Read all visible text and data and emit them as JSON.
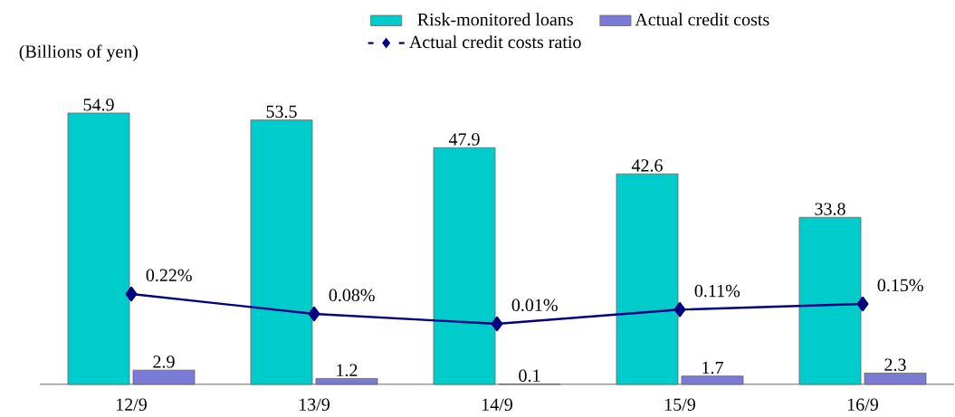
{
  "chart_data": {
    "type": "bar",
    "ylabel": "(Billions of yen)",
    "categories": [
      "12/9",
      "13/9",
      "14/9",
      "15/9",
      "16/9"
    ],
    "series": [
      {
        "name": "Risk-monitored loans",
        "color": "#00cccc",
        "values": [
          54.9,
          53.5,
          47.9,
          42.6,
          33.8
        ],
        "value_labels": [
          "54.9",
          "53.5",
          "47.9",
          "42.6",
          "33.8"
        ]
      },
      {
        "name": "Actual credit costs",
        "color": "#7b7bd6",
        "values": [
          2.9,
          1.2,
          0.1,
          1.7,
          2.3
        ],
        "value_labels": [
          "2.9",
          "1.2",
          "0.1",
          "1.7",
          "2.3"
        ]
      },
      {
        "name": "Actual credit costs ratio",
        "type": "line",
        "axis": "y2",
        "color": "#000080",
        "marker": "diamond",
        "values": [
          0.22,
          0.08,
          0.01,
          0.11,
          0.15
        ],
        "value_labels": [
          "0.22%",
          "0.08%",
          "0.01%",
          "0.11%",
          "0.15%"
        ]
      }
    ],
    "legend": "top"
  }
}
